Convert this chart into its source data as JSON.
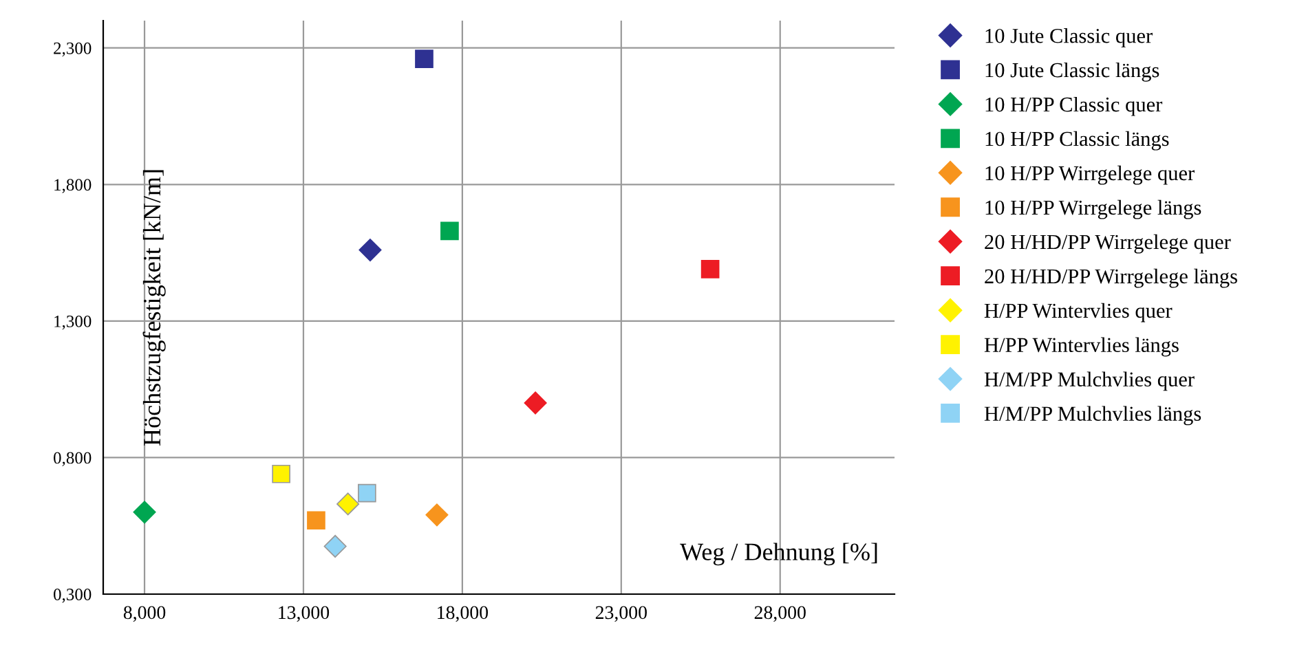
{
  "chart_data": {
    "type": "scatter",
    "xlabel": "Weg / Dehnung [%]",
    "ylabel": "Höchstzugfestigkeit [kN/m]",
    "xlim": [
      6.7,
      31.6
    ],
    "ylim": [
      0.3,
      2.4
    ],
    "xticks": [
      {
        "value": 8,
        "label": "8,000"
      },
      {
        "value": 13,
        "label": "13,000"
      },
      {
        "value": 18,
        "label": "18,000"
      },
      {
        "value": 23,
        "label": "23,000"
      },
      {
        "value": 28,
        "label": "28,000"
      }
    ],
    "yticks": [
      {
        "value": 0.3,
        "label": "0,300"
      },
      {
        "value": 0.8,
        "label": "0,800"
      },
      {
        "value": 1.3,
        "label": "1,300"
      },
      {
        "value": 1.8,
        "label": "1,800"
      },
      {
        "value": 2.3,
        "label": "2,300"
      }
    ],
    "grid": true,
    "legend": "right",
    "series": [
      {
        "name": "10 Jute Classic quer",
        "color": "#2e3192",
        "marker": "diamond",
        "x": [
          15.1
        ],
        "values": [
          1.56
        ]
      },
      {
        "name": "10 Jute Classic längs",
        "color": "#2e3192",
        "marker": "square",
        "x": [
          16.8
        ],
        "values": [
          2.26
        ]
      },
      {
        "name": "10 H/PP Classic quer",
        "color": "#00a651",
        "marker": "diamond",
        "x": [
          8.0
        ],
        "values": [
          0.6
        ]
      },
      {
        "name": "10 H/PP Classic längs",
        "color": "#00a651",
        "marker": "square",
        "x": [
          17.6
        ],
        "values": [
          1.63
        ]
      },
      {
        "name": "10 H/PP Wirrgelege quer",
        "color": "#f7941d",
        "marker": "diamond",
        "x": [
          17.2
        ],
        "values": [
          0.59
        ]
      },
      {
        "name": "10 H/PP Wirrgelege längs",
        "color": "#f7941d",
        "marker": "square",
        "x": [
          13.4
        ],
        "values": [
          0.57
        ]
      },
      {
        "name": "20 H/HD/PP Wirrgelege quer",
        "color": "#ed1c24",
        "marker": "diamond",
        "x": [
          20.3
        ],
        "values": [
          1.0
        ]
      },
      {
        "name": "20 H/HD/PP Wirrgelege längs",
        "color": "#ed1c24",
        "marker": "square",
        "x": [
          25.8
        ],
        "values": [
          1.49
        ]
      },
      {
        "name": "H/PP Wintervlies quer",
        "color": "#fff200",
        "marker": "diamond",
        "x": [
          14.4
        ],
        "values": [
          0.63
        ]
      },
      {
        "name": "H/PP Wintervlies längs",
        "color": "#fff200",
        "marker": "square",
        "x": [
          12.3
        ],
        "values": [
          0.74
        ]
      },
      {
        "name": "H/M/PP Mulchvlies quer",
        "color": "#8fd3f5",
        "marker": "diamond",
        "x": [
          14.0
        ],
        "values": [
          0.475
        ]
      },
      {
        "name": "H/M/PP Mulchvlies längs",
        "color": "#8fd3f5",
        "marker": "square",
        "x": [
          15.0
        ],
        "values": [
          0.67
        ]
      }
    ]
  }
}
